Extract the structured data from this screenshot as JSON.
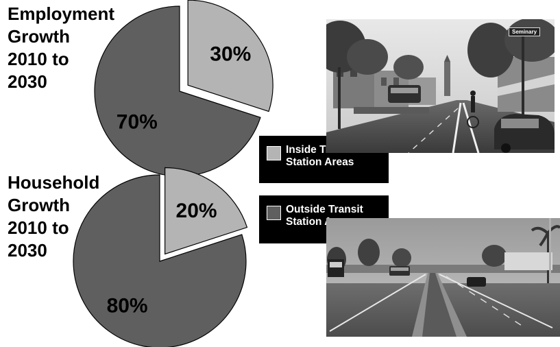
{
  "titles": {
    "employment": [
      "Employment",
      "Growth",
      "2010 to",
      "2030"
    ],
    "household": [
      "Household",
      "Growth",
      "2010 to",
      "2030"
    ]
  },
  "legend": {
    "inside": [
      "Inside Transit",
      "Station Areas"
    ],
    "outside": [
      "Outside Transit",
      "Station Areas"
    ]
  },
  "colors": {
    "inside": "#b4b4b4",
    "outside": "#5f5f5f",
    "legend_bg": "#000000"
  },
  "photos": {
    "top_sign": "Seminary"
  },
  "chart_data": [
    {
      "type": "pie",
      "title": "Employment Growth 2010 to 2030",
      "categories": [
        "Inside Transit Station Areas",
        "Outside Transit Station Areas"
      ],
      "values": [
        30,
        70
      ],
      "labels": [
        "30%",
        "70%"
      ],
      "exploded": "Inside Transit Station Areas"
    },
    {
      "type": "pie",
      "title": "Household Growth 2010 to 2030",
      "categories": [
        "Inside Transit Station Areas",
        "Outside Transit Station Areas"
      ],
      "values": [
        20,
        80
      ],
      "labels": [
        "20%",
        "80%"
      ],
      "exploded": "Inside Transit Station Areas"
    }
  ]
}
